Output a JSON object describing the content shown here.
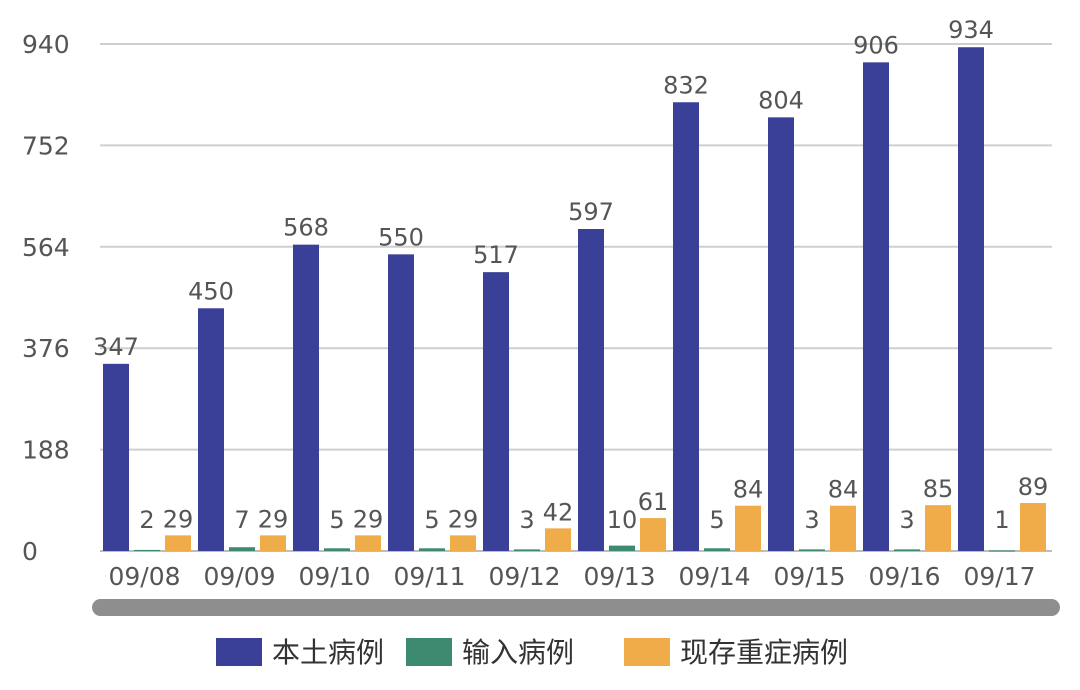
{
  "chart_data": {
    "type": "bar",
    "categories": [
      "09/08",
      "09/09",
      "09/10",
      "09/11",
      "09/12",
      "09/13",
      "09/14",
      "09/15",
      "09/16",
      "09/17"
    ],
    "series": [
      {
        "name": "本土病例",
        "color": "#3a3f98",
        "values": [
          347,
          450,
          568,
          550,
          517,
          597,
          832,
          804,
          906,
          934
        ]
      },
      {
        "name": "输入病例",
        "color": "#3d8a70",
        "values": [
          2,
          7,
          5,
          5,
          3,
          10,
          5,
          3,
          3,
          1
        ]
      },
      {
        "name": "现存重症病例",
        "color": "#f0ac48",
        "values": [
          29,
          29,
          29,
          29,
          42,
          61,
          84,
          84,
          85,
          89
        ]
      }
    ],
    "ylim": [
      0,
      940
    ],
    "yticks": [
      0,
      188,
      376,
      564,
      752,
      940
    ],
    "yticks_text": [
      "0",
      "188",
      "376",
      "564",
      "752",
      "940"
    ],
    "grid": true,
    "legend_position": "bottom",
    "title": "",
    "xlabel": "",
    "ylabel": ""
  }
}
